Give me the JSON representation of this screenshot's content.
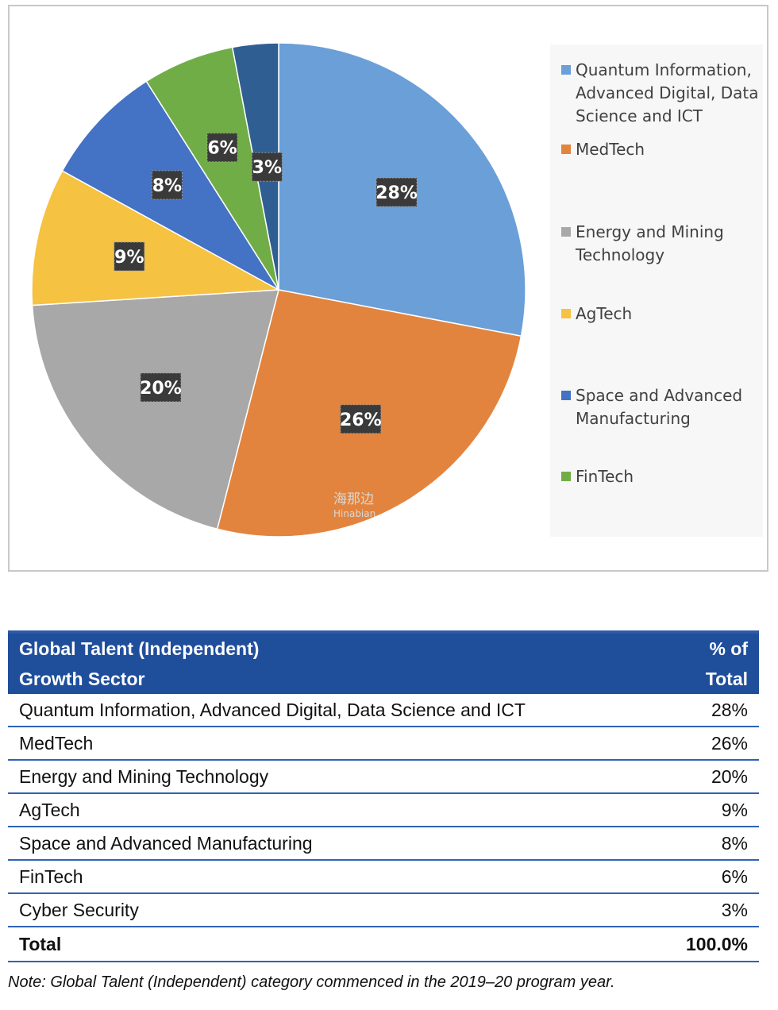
{
  "chart_data": {
    "type": "pie",
    "slices": [
      {
        "name": "Quantum Information, Advanced Digital, Data Science and ICT",
        "value": 28,
        "label": "28%",
        "color": "#6a9fd8"
      },
      {
        "name": "MedTech",
        "value": 26,
        "label": "26%",
        "color": "#e3843e"
      },
      {
        "name": "Energy and Mining Technology",
        "value": 20,
        "label": "20%",
        "color": "#a8a8a8"
      },
      {
        "name": "AgTech",
        "value": 9,
        "label": "9%",
        "color": "#f5c242"
      },
      {
        "name": "Space and Advanced Manufacturing",
        "value": 8,
        "label": "8%",
        "color": "#4472c4"
      },
      {
        "name": "FinTech",
        "value": 6,
        "label": "6%",
        "color": "#71ad47"
      },
      {
        "name": "Cyber Security",
        "value": 3,
        "label": "3%",
        "color": "#2f5e92"
      }
    ],
    "legend": {
      "placement": "right",
      "entries": [
        {
          "label": "Quantum Information, Advanced Digital, Data Science and ICT",
          "color": "#6a9fd8"
        },
        {
          "label": "MedTech",
          "color": "#e3843e"
        },
        {
          "label": "Energy and Mining Technology",
          "color": "#a8a8a8"
        },
        {
          "label": "AgTech",
          "color": "#f5c242"
        },
        {
          "label": "Space and Advanced Manufacturing",
          "color": "#4472c4"
        },
        {
          "label": "FinTech",
          "color": "#71ad47"
        }
      ]
    }
  },
  "watermark": {
    "text": "海那边",
    "sub": "Hinabian"
  },
  "table": {
    "header": {
      "sector": [
        "Global Talent (Independent)",
        "Growth Sector"
      ],
      "pct": [
        "% of",
        "Total"
      ]
    },
    "rows": [
      {
        "sector": "Quantum Information, Advanced Digital, Data Science and ICT",
        "pct": "28%"
      },
      {
        "sector": "MedTech",
        "pct": "26%"
      },
      {
        "sector": "Energy and Mining Technology",
        "pct": "20%"
      },
      {
        "sector": "AgTech",
        "pct": "9%"
      },
      {
        "sector": "Space and Advanced Manufacturing",
        "pct": "8%"
      },
      {
        "sector": "FinTech",
        "pct": "6%"
      },
      {
        "sector": "Cyber Security",
        "pct": "3%"
      }
    ],
    "total": {
      "sector": "Total",
      "pct": "100.0%"
    }
  },
  "note": "Note: Global Talent (Independent) category commenced in the 2019–20 program year."
}
